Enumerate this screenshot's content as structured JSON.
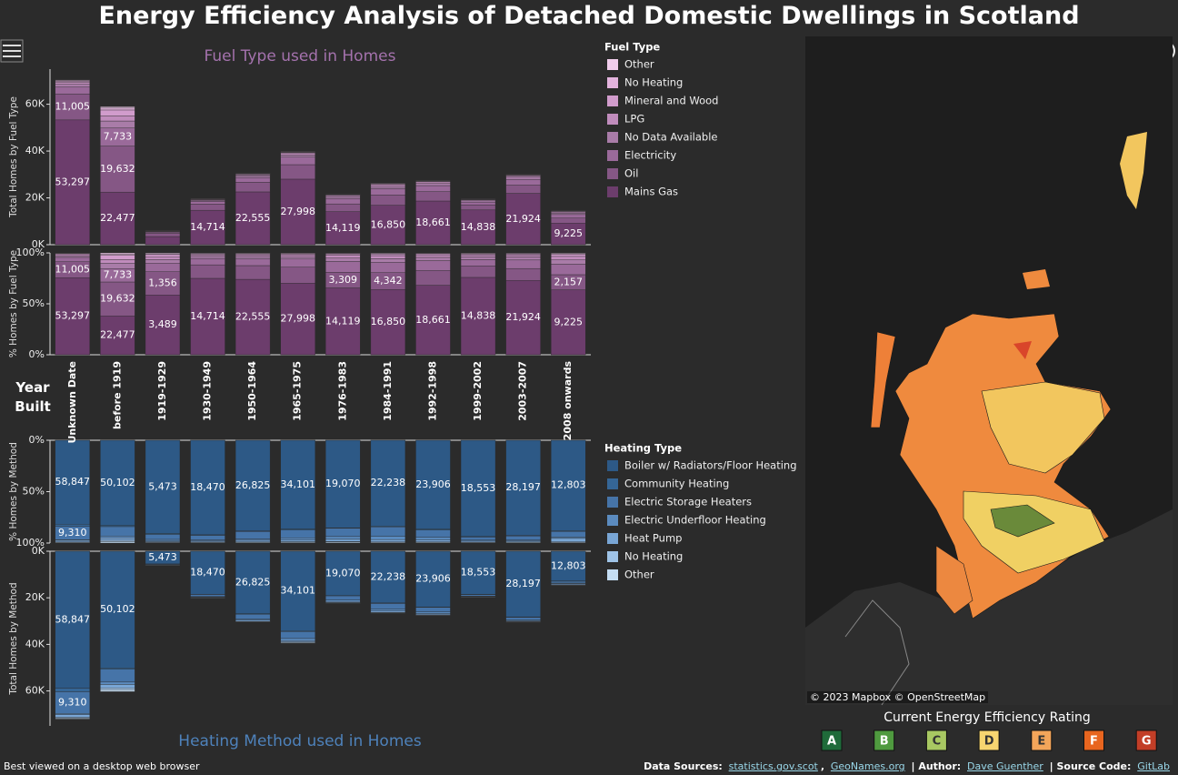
{
  "title": "Energy Efficiency Analysis of Detached Domestic Dwellings in Scotland",
  "chart_data": [
    {
      "type": "stacked_bar",
      "title": "Fuel Type used in Homes",
      "x_label": "Year Built",
      "ylabel": "Total Homes by Fuel Type",
      "pct_ylabel": "% Homes by Fuel Type",
      "legend_title": "Fuel Type",
      "legend_order": "reverse",
      "direction": "up",
      "categories": [
        "Unknown Date",
        "before 1919",
        "1919-1929",
        "1930-1949",
        "1950-1964",
        "1965-1975",
        "1976-1983",
        "1984-1991",
        "1992-1998",
        "1999-2002",
        "2003-2007",
        "2008 onwards"
      ],
      "ylim": [
        0,
        75000
      ],
      "yticks": [
        {
          "value": 0,
          "label": "0K"
        },
        {
          "value": 20000,
          "label": "20K"
        },
        {
          "value": 40000,
          "label": "40K"
        },
        {
          "value": 60000,
          "label": "60K"
        }
      ],
      "pct_ylim": [
        0,
        100
      ],
      "pct_yticks": [
        {
          "value": 0,
          "label": "0%"
        },
        {
          "value": 50,
          "label": "50%"
        },
        {
          "value": 100,
          "label": "100%"
        }
      ],
      "series": [
        {
          "name": "Mains Gas",
          "color": "#6c3d6c",
          "values": [
            53297,
            22477,
            3489,
            14714,
            22555,
            27998,
            14119,
            16850,
            18661,
            14838,
            21924,
            9225
          ],
          "value_labels": [
            "53,297",
            "22,477",
            "3,489",
            "14,714",
            "22,555",
            "27,998",
            "14,119",
            "16,850",
            "18,661",
            "14,838",
            "21,924",
            "9,225"
          ]
        },
        {
          "name": "Oil",
          "color": "#855785",
          "values": [
            11005,
            19632,
            1356,
            2600,
            4100,
            6200,
            3309,
            4342,
            4000,
            2200,
            3500,
            2157
          ],
          "value_labels": [
            "11,005",
            "19,632",
            "1,356",
            null,
            null,
            null,
            "3,309",
            "4,342",
            null,
            null,
            null,
            "2,157"
          ]
        },
        {
          "name": "Electricity",
          "color": "#9a6a9a",
          "values": [
            3000,
            7733,
            500,
            1200,
            2000,
            3200,
            2300,
            2700,
            2600,
            1200,
            2500,
            1500
          ],
          "value_labels": [
            null,
            "7,733",
            null,
            null,
            null,
            null,
            null,
            null,
            null,
            null,
            null,
            null
          ]
        },
        {
          "name": "No Data Available",
          "color": "#a97ca8",
          "values": [
            1200,
            3000,
            200,
            400,
            700,
            900,
            700,
            900,
            900,
            500,
            900,
            600
          ]
        },
        {
          "name": "LPG",
          "color": "#c08cbc",
          "values": [
            800,
            2200,
            150,
            300,
            500,
            700,
            600,
            800,
            700,
            400,
            600,
            500
          ]
        },
        {
          "name": "Mineral and Wood",
          "color": "#d19ccc",
          "values": [
            600,
            2500,
            150,
            200,
            300,
            400,
            300,
            400,
            300,
            200,
            300,
            300
          ]
        },
        {
          "name": "No Heating",
          "color": "#e3b3dd",
          "values": [
            300,
            800,
            50,
            100,
            150,
            200,
            100,
            150,
            100,
            100,
            150,
            100
          ]
        },
        {
          "name": "Other",
          "color": "#f1cdec",
          "values": [
            200,
            600,
            50,
            100,
            150,
            200,
            100,
            150,
            100,
            100,
            150,
            100
          ]
        }
      ]
    },
    {
      "type": "stacked_bar",
      "title": "Heating Method used in Homes",
      "ylabel": "Total Homes by Method",
      "pct_ylabel": "% Homes by Method",
      "legend_title": "Heating Type",
      "legend_order": "normal",
      "direction": "down",
      "ylim": [
        0,
        75000
      ],
      "yticks": [
        {
          "value": 0,
          "label": "0K"
        },
        {
          "value": 20000,
          "label": "20K"
        },
        {
          "value": 40000,
          "label": "40K"
        },
        {
          "value": 60000,
          "label": "60K"
        }
      ],
      "pct_ylim": [
        0,
        100
      ],
      "pct_yticks": [
        {
          "value": 0,
          "label": "0%"
        },
        {
          "value": 50,
          "label": "50%"
        },
        {
          "value": 100,
          "label": "100%"
        }
      ],
      "series": [
        {
          "name": "Boiler w/ Radiators/Floor Heating",
          "color": "#2d5986",
          "values": [
            58847,
            50102,
            5473,
            18470,
            26825,
            34101,
            19070,
            22238,
            23906,
            18553,
            28197,
            12803
          ],
          "value_labels": [
            "58,847",
            "50,102",
            "5,473",
            "18,470",
            "26,825",
            "34,101",
            "19,070",
            "22,238",
            "23,906",
            "18,553",
            "28,197",
            "12,803"
          ]
        },
        {
          "name": "Community Heating",
          "color": "#356696",
          "values": [
            1500,
            600,
            50,
            100,
            200,
            400,
            100,
            200,
            200,
            100,
            200,
            100
          ]
        },
        {
          "name": "Electric Storage Heaters",
          "color": "#4674a8",
          "values": [
            9310,
            5500,
            300,
            900,
            2200,
            3000,
            1800,
            2500,
            2000,
            600,
            1200,
            800
          ],
          "value_labels": [
            "9,310",
            null,
            null,
            null,
            null,
            null,
            null,
            null,
            null,
            null,
            null,
            null
          ]
        },
        {
          "name": "Electric Underfloor Heating",
          "color": "#5b8bbf",
          "values": [
            500,
            1000,
            100,
            200,
            400,
            900,
            600,
            800,
            700,
            200,
            300,
            200
          ]
        },
        {
          "name": "Heat Pump",
          "color": "#79a6d5",
          "values": [
            1200,
            1500,
            50,
            200,
            500,
            600,
            500,
            600,
            500,
            200,
            300,
            500
          ]
        },
        {
          "name": "No Heating",
          "color": "#9fc3e7",
          "values": [
            300,
            800,
            30,
            100,
            100,
            200,
            100,
            100,
            100,
            50,
            100,
            50
          ]
        },
        {
          "name": "Other",
          "color": "#c4ddf3",
          "values": [
            400,
            800,
            30,
            100,
            200,
            300,
            200,
            200,
            200,
            100,
            200,
            100
          ]
        }
      ]
    }
  ],
  "map": {
    "attribution": "© 2023 Mapbox © OpenStreetMap",
    "legend_title": "Current Energy Efficiency Rating",
    "ratings": [
      {
        "label": "A",
        "color": "#1f6b3a"
      },
      {
        "label": "B",
        "color": "#4f9a3f"
      },
      {
        "label": "C",
        "color": "#a8c862"
      },
      {
        "label": "D",
        "color": "#f7d570"
      },
      {
        "label": "E",
        "color": "#f3a55a"
      },
      {
        "label": "F",
        "color": "#e8651f"
      },
      {
        "label": "G",
        "color": "#c23e27"
      }
    ]
  },
  "footer": {
    "note": "Best viewed on a desktop web browser",
    "sources_label": "Data Sources:",
    "source_1": "statistics.gov.scot",
    "separator": ",",
    "source_2": "GeoNames.org",
    "author_label": "| Author:",
    "author": "Dave Guenther",
    "code_label": "| Source Code:",
    "code": "GitLab"
  }
}
